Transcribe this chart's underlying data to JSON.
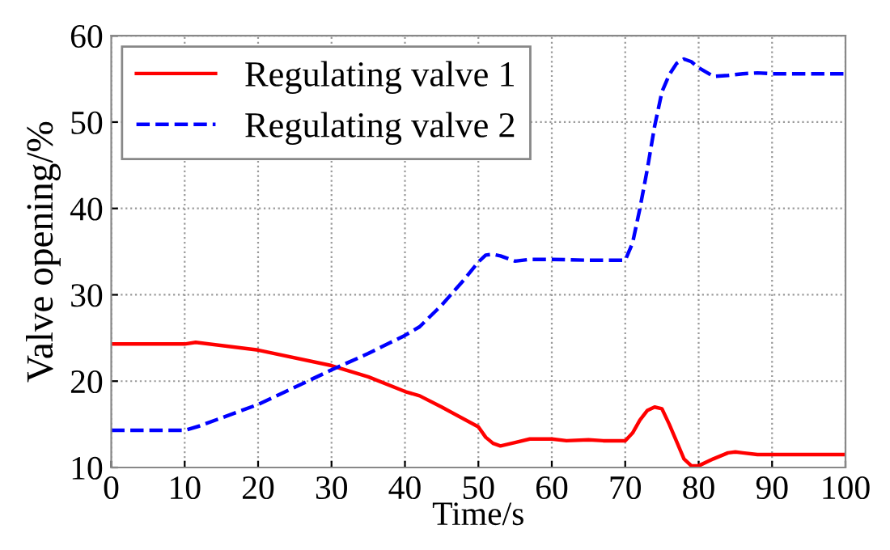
{
  "chart_data": {
    "type": "line",
    "xlabel": "Time/s",
    "ylabel": "Valve opening/%",
    "xlim": [
      0,
      100
    ],
    "xticks": [
      0,
      10,
      20,
      30,
      40,
      50,
      60,
      70,
      80,
      90,
      100
    ],
    "ylim": [
      10,
      60
    ],
    "yticks": [
      10,
      20,
      30,
      40,
      50,
      60
    ],
    "grid": true,
    "legend": "top left",
    "series": [
      {
        "name": "Regulating valve 1",
        "color": "#ff0000",
        "line_style": "solid",
        "x": [
          0,
          10,
          11.5,
          20,
          30,
          35,
          40,
          42,
          45,
          50,
          51,
          52,
          53,
          55,
          57,
          60,
          62,
          65,
          67,
          70,
          71,
          72,
          73,
          74,
          75,
          76,
          77,
          78,
          79,
          80,
          82,
          84,
          85,
          86,
          88,
          100
        ],
        "values": [
          24.3,
          24.3,
          24.5,
          23.6,
          21.8,
          20.5,
          18.8,
          18.3,
          17.0,
          14.7,
          13.5,
          12.8,
          12.5,
          12.9,
          13.3,
          13.3,
          13.1,
          13.2,
          13.1,
          13.1,
          14.0,
          15.5,
          16.6,
          17.0,
          16.8,
          15.0,
          13.0,
          11.0,
          10.2,
          10.2,
          11.0,
          11.7,
          11.8,
          11.7,
          11.5,
          11.5
        ]
      },
      {
        "name": "Regulating valve 2",
        "color": "#0000ff",
        "line_style": "dashed",
        "x": [
          0,
          10,
          12,
          20,
          25,
          30,
          35,
          40,
          42,
          45,
          48,
          50,
          51,
          52,
          53,
          55,
          57,
          60,
          65,
          70,
          71,
          72,
          73,
          74,
          75,
          76,
          77,
          78,
          79,
          80,
          82,
          84,
          86,
          88,
          90,
          100
        ],
        "values": [
          14.3,
          14.3,
          14.8,
          17.3,
          19.3,
          21.3,
          23.2,
          25.3,
          26.3,
          28.8,
          31.7,
          33.8,
          34.6,
          34.7,
          34.5,
          33.9,
          34.1,
          34.1,
          34.0,
          34.0,
          36.0,
          40.0,
          44.5,
          49.5,
          53.5,
          55.5,
          56.8,
          57.3,
          57.0,
          56.3,
          55.3,
          55.4,
          55.6,
          55.7,
          55.6,
          55.6
        ]
      }
    ]
  }
}
